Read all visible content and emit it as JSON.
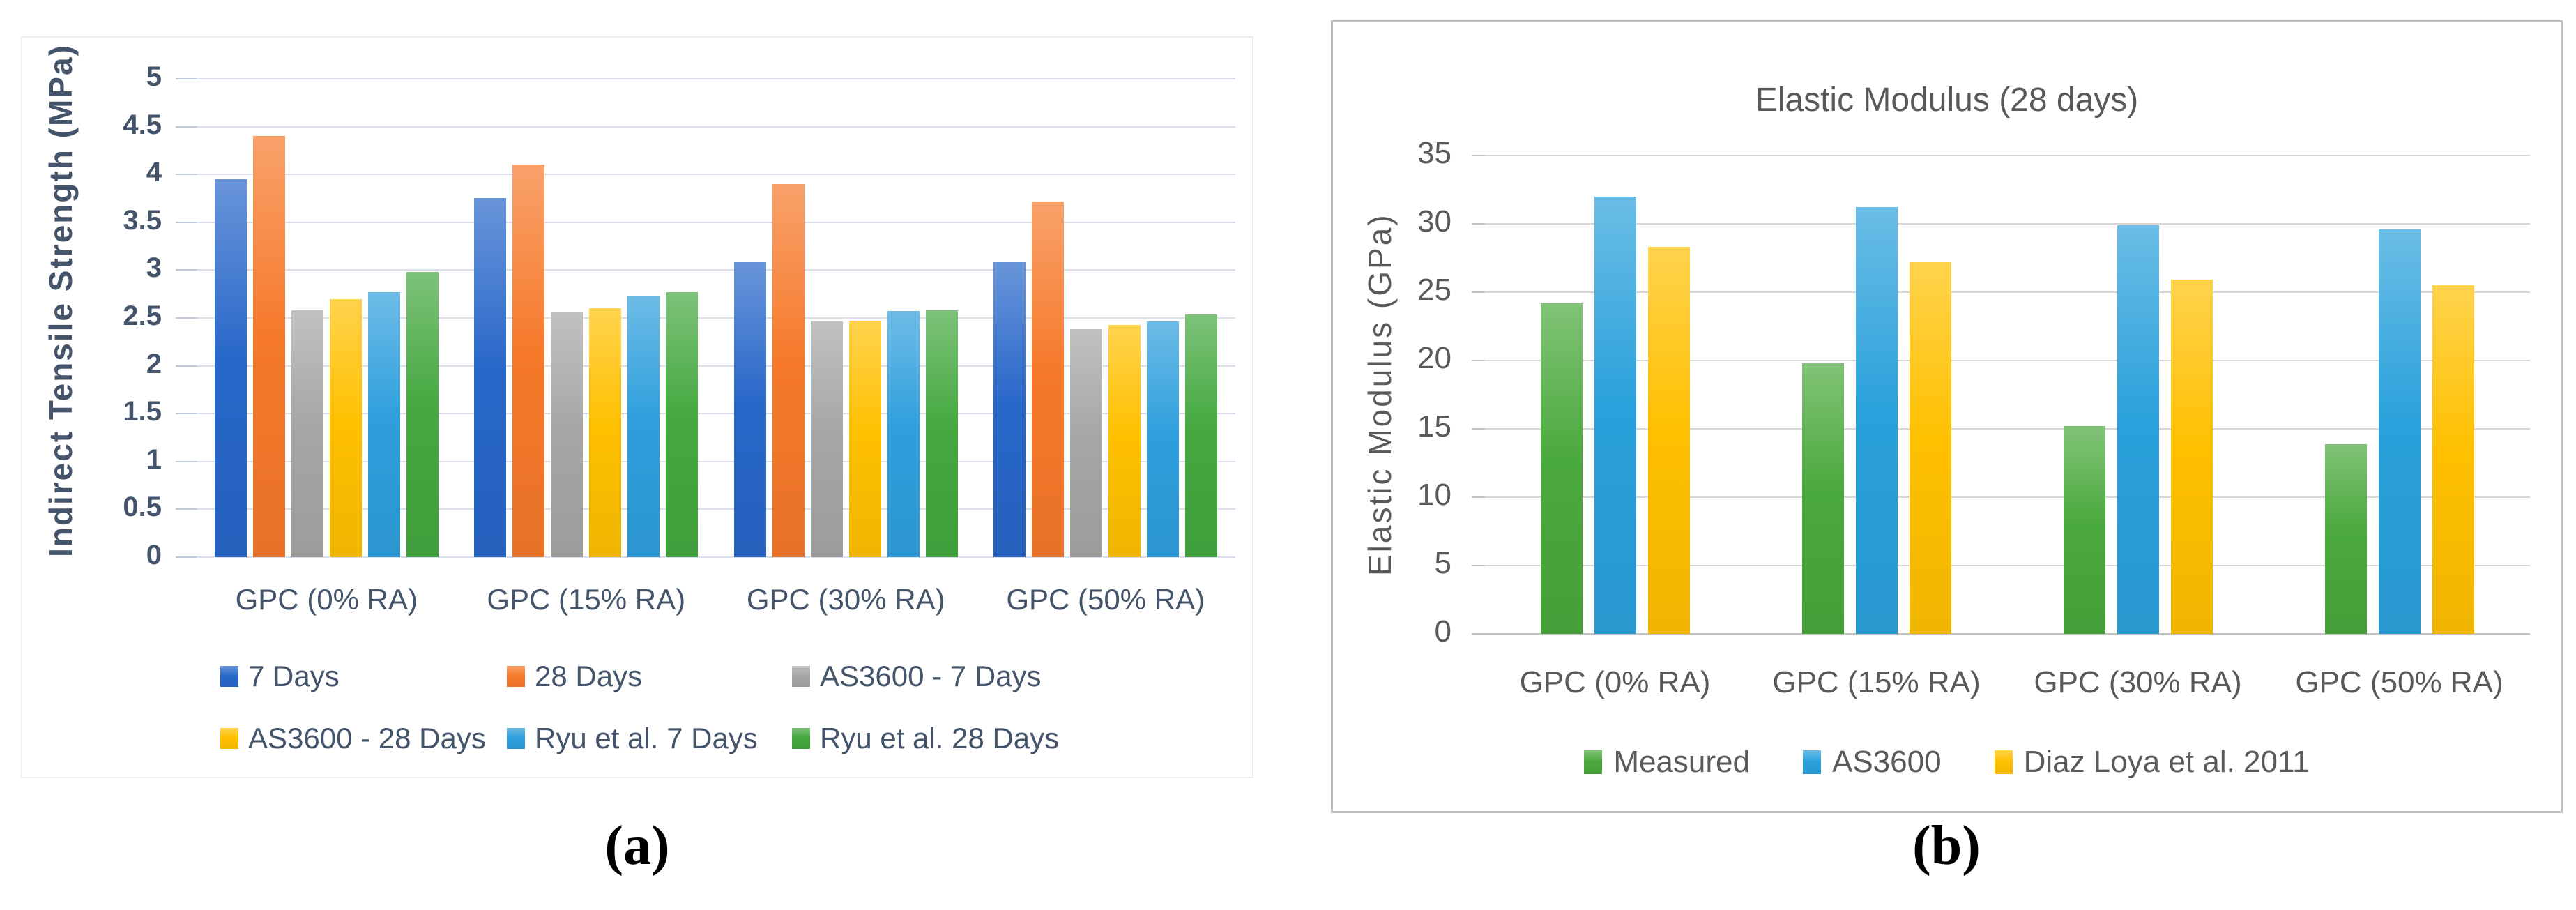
{
  "figure": {
    "panel_a_label": "(a)",
    "panel_b_label": "(b)"
  },
  "colors": {
    "text_a": "#44546A",
    "text_b": "#595959",
    "grid_a": "#D9E0EC",
    "stub_a": "#BFC9DA",
    "grid_b": "#D7D7D7",
    "baseline_b": "#C3C3C3",
    "border_a": "#ECECEC",
    "border_b": "#BFBFBF"
  },
  "chart_data": [
    {
      "id": "a",
      "type": "bar",
      "title": "",
      "xlabel": "",
      "ylabel": "Indirect Tensile Strength (MPa)",
      "ylim": [
        0,
        5
      ],
      "ytick_step": 0.5,
      "grid": true,
      "legend_position": "bottom",
      "categories": [
        "GPC (0% RA)",
        "GPC (15% RA)",
        "GPC (30% RA)",
        "GPC (50% RA)"
      ],
      "series": [
        {
          "name": "7 Days",
          "color": "#2867C9",
          "values": [
            3.95,
            3.75,
            3.08,
            3.08
          ]
        },
        {
          "name": "28 Days",
          "color": "#F6792A",
          "values": [
            4.4,
            4.1,
            3.9,
            3.72
          ]
        },
        {
          "name": "AS3600 - 7 Days",
          "color": "#A6A6A6",
          "values": [
            2.58,
            2.56,
            2.46,
            2.38
          ]
        },
        {
          "name": "AS3600 - 28 Days",
          "color": "#FFC000",
          "values": [
            2.7,
            2.6,
            2.47,
            2.43
          ]
        },
        {
          "name": "Ryu et al. 7 Days",
          "color": "#2E9FDC",
          "values": [
            2.77,
            2.73,
            2.57,
            2.46
          ]
        },
        {
          "name": "Ryu et al. 28 Days",
          "color": "#44A83F",
          "values": [
            2.98,
            2.77,
            2.58,
            2.54
          ]
        }
      ],
      "legend_rows": [
        [
          0,
          1,
          2
        ],
        [
          3,
          4,
          5
        ]
      ]
    },
    {
      "id": "b",
      "type": "bar",
      "title": "Elastic Modulus (28 days)",
      "xlabel": "",
      "ylabel": "Elastic Modulus (GPa)",
      "ylim": [
        0,
        35
      ],
      "ytick_step": 5,
      "grid": true,
      "legend_position": "bottom",
      "categories": [
        "GPC (0% RA)",
        "GPC (15% RA)",
        "GPC (30% RA)",
        "GPC (50% RA)"
      ],
      "series": [
        {
          "name": "Measured",
          "color": "#4AA93C",
          "values": [
            24.2,
            19.8,
            15.2,
            13.9
          ]
        },
        {
          "name": "AS3600",
          "color": "#2AA1DB",
          "values": [
            32.0,
            31.2,
            29.9,
            29.6
          ]
        },
        {
          "name": "Diaz Loya et al. 2011",
          "color": "#FFC000",
          "values": [
            28.3,
            27.2,
            25.9,
            25.5
          ]
        }
      ],
      "legend_rows": [
        [
          0,
          1,
          2
        ]
      ]
    }
  ]
}
